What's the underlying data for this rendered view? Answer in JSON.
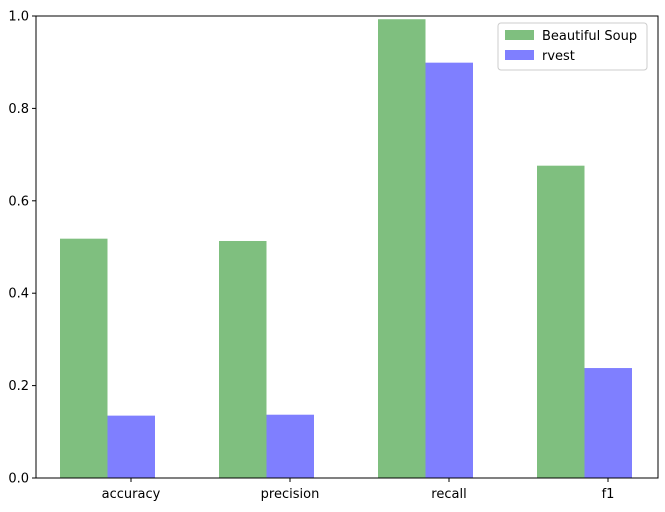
{
  "chart_data": {
    "type": "bar",
    "title": "",
    "xlabel": "",
    "ylabel": "",
    "categories": [
      "accuracy",
      "precision",
      "recall",
      "f1"
    ],
    "series": [
      {
        "name": "Beautiful Soup",
        "color": "#7fbf7f",
        "values": [
          0.518,
          0.513,
          0.993,
          0.676
        ]
      },
      {
        "name": "rvest",
        "color": "#7f7fff",
        "values": [
          0.135,
          0.137,
          0.899,
          0.238
        ]
      }
    ],
    "ylim": [
      0.0,
      1.0
    ],
    "yticks": [
      "0.0",
      "0.2",
      "0.4",
      "0.6",
      "0.8",
      "1.0"
    ],
    "grid": false,
    "legend_position": "top-right"
  }
}
